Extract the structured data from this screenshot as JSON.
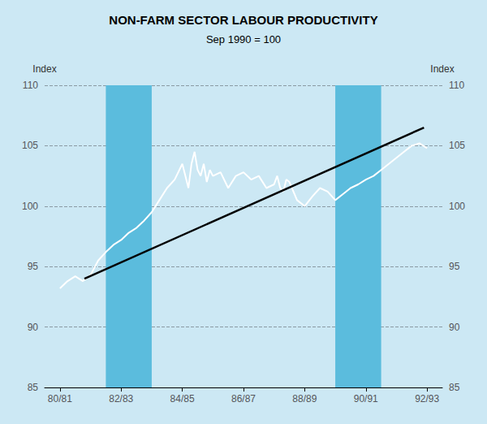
{
  "chart_data": {
    "type": "line",
    "title": "NON-FARM SECTOR LABOUR PRODUCTIVITY",
    "subtitle": "Sep 1990 = 100",
    "y_label": "Index",
    "y2_label": "Index",
    "background_color": "#cce8f4",
    "xlim": [
      0,
      13
    ],
    "xticks": [
      {
        "value": 0.5,
        "label": "80/81"
      },
      {
        "value": 2.5,
        "label": "82/83"
      },
      {
        "value": 4.5,
        "label": "84/85"
      },
      {
        "value": 6.5,
        "label": "86/87"
      },
      {
        "value": 8.5,
        "label": "88/89"
      },
      {
        "value": 10.5,
        "label": "90/91"
      },
      {
        "value": 12.5,
        "label": "92/93"
      }
    ],
    "ylim": [
      85,
      110
    ],
    "yticks": [
      85,
      90,
      95,
      100,
      105,
      110
    ],
    "y2lim": [
      85,
      110
    ],
    "y2ticks": [
      85,
      90,
      95,
      100,
      105,
      110
    ],
    "grid": true,
    "shaded_regions": [
      {
        "xstart": 2.0,
        "xend": 3.5,
        "color": "#5bbcdd"
      },
      {
        "xstart": 9.5,
        "xend": 11.0,
        "color": "#5bbcdd"
      }
    ],
    "series": [
      {
        "color": "#ffffff",
        "x": [
          0.5,
          0.75,
          1.0,
          1.25,
          1.5,
          1.75,
          2.0,
          2.25,
          2.5,
          2.75,
          3.0,
          3.25,
          3.5,
          3.75,
          4.0,
          4.25,
          4.5,
          4.6,
          4.7,
          4.8,
          4.9,
          5.0,
          5.1,
          5.2,
          5.3,
          5.4,
          5.5,
          5.75,
          6.0,
          6.25,
          6.5,
          6.75,
          7.0,
          7.25,
          7.5,
          7.6,
          7.7,
          7.8,
          7.9,
          8.0,
          8.25,
          8.5,
          8.75,
          9.0,
          9.25,
          9.5,
          9.75,
          10.0,
          10.25,
          10.5,
          10.75,
          11.0,
          11.25,
          11.5,
          11.75,
          12.0,
          12.25,
          12.5
        ],
        "values": [
          93.2,
          93.8,
          94.2,
          93.8,
          94.3,
          95.5,
          96.2,
          96.8,
          97.2,
          97.8,
          98.2,
          98.8,
          99.5,
          100.5,
          101.5,
          102.2,
          103.5,
          102.5,
          101.5,
          103.5,
          104.5,
          103.0,
          102.5,
          103.5,
          102.0,
          103.0,
          102.5,
          102.8,
          101.5,
          102.5,
          102.8,
          102.2,
          102.5,
          101.5,
          101.8,
          102.5,
          101.5,
          101.2,
          102.2,
          102.0,
          100.5,
          100.0,
          100.8,
          101.5,
          101.2,
          100.5,
          101.0,
          101.5,
          101.8,
          102.2,
          102.5,
          103.0,
          103.5,
          104.0,
          104.5,
          105.0,
          105.2,
          104.8
        ]
      },
      {
        "color": "#000000",
        "x": [
          1.3,
          12.4
        ],
        "values": [
          94.0,
          106.5
        ]
      }
    ]
  }
}
